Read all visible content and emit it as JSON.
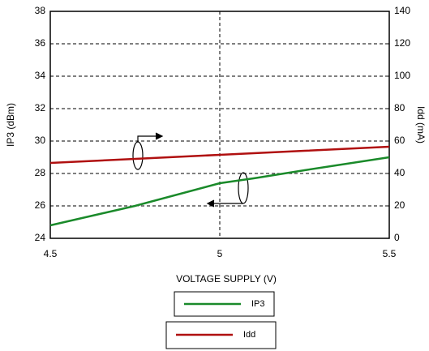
{
  "chart_data": {
    "type": "line",
    "x_label": "VOLTAGE SUPPLY (V)",
    "y_label": "IP3 (dBm)",
    "y2_label": "Idd (mA)",
    "x": [
      4.5,
      4.75,
      5.0,
      5.1,
      5.25,
      5.5
    ],
    "series": [
      {
        "name": "IP3",
        "color": "#1a8a2a",
        "values": [
          24.8,
          26.0,
          27.4,
          27.7,
          28.2,
          29.0
        ]
      },
      {
        "name": "Idd",
        "color": "#b01010",
        "axis": "y2",
        "values": [
          46.5,
          49.0,
          51.5,
          52.5,
          54.0,
          56.5
        ]
      }
    ],
    "xlim": [
      4.5,
      5.5
    ],
    "xticks": [
      4.5,
      5,
      5.5
    ],
    "ylim": [
      24,
      38
    ],
    "yticks": [
      24,
      26,
      28,
      30,
      32,
      34,
      36,
      38
    ],
    "y2lim": [
      0,
      140
    ],
    "y2ticks": [
      0,
      20,
      40,
      60,
      80,
      100,
      120,
      140
    ],
    "grid": true
  }
}
